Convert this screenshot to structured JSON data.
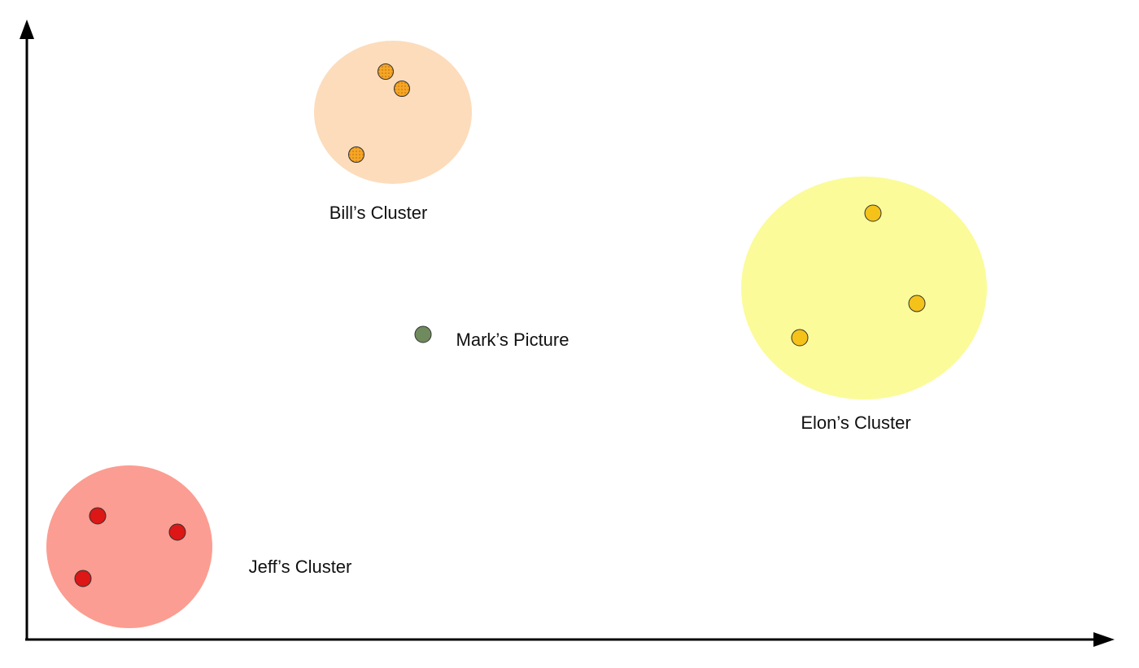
{
  "axes": {
    "color": "#000000"
  },
  "clusters": [
    {
      "id": "bill",
      "label": "Bill’s Cluster",
      "fill": "#fcdcbb",
      "point_color": "#f5a623",
      "point_pattern": "dotted",
      "point_count": 3
    },
    {
      "id": "elon",
      "label": "Elon’s Cluster",
      "fill": "#fbfb9a",
      "point_color": "#f4c218",
      "point_pattern": "solid",
      "point_count": 3
    },
    {
      "id": "jeff",
      "label": "Jeff’s Cluster",
      "fill": "#fb9d92",
      "point_color": "#dd1616",
      "point_pattern": "solid",
      "point_count": 3
    }
  ],
  "query_point": {
    "label": "Mark’s Picture",
    "color": "#6f8a5c"
  }
}
